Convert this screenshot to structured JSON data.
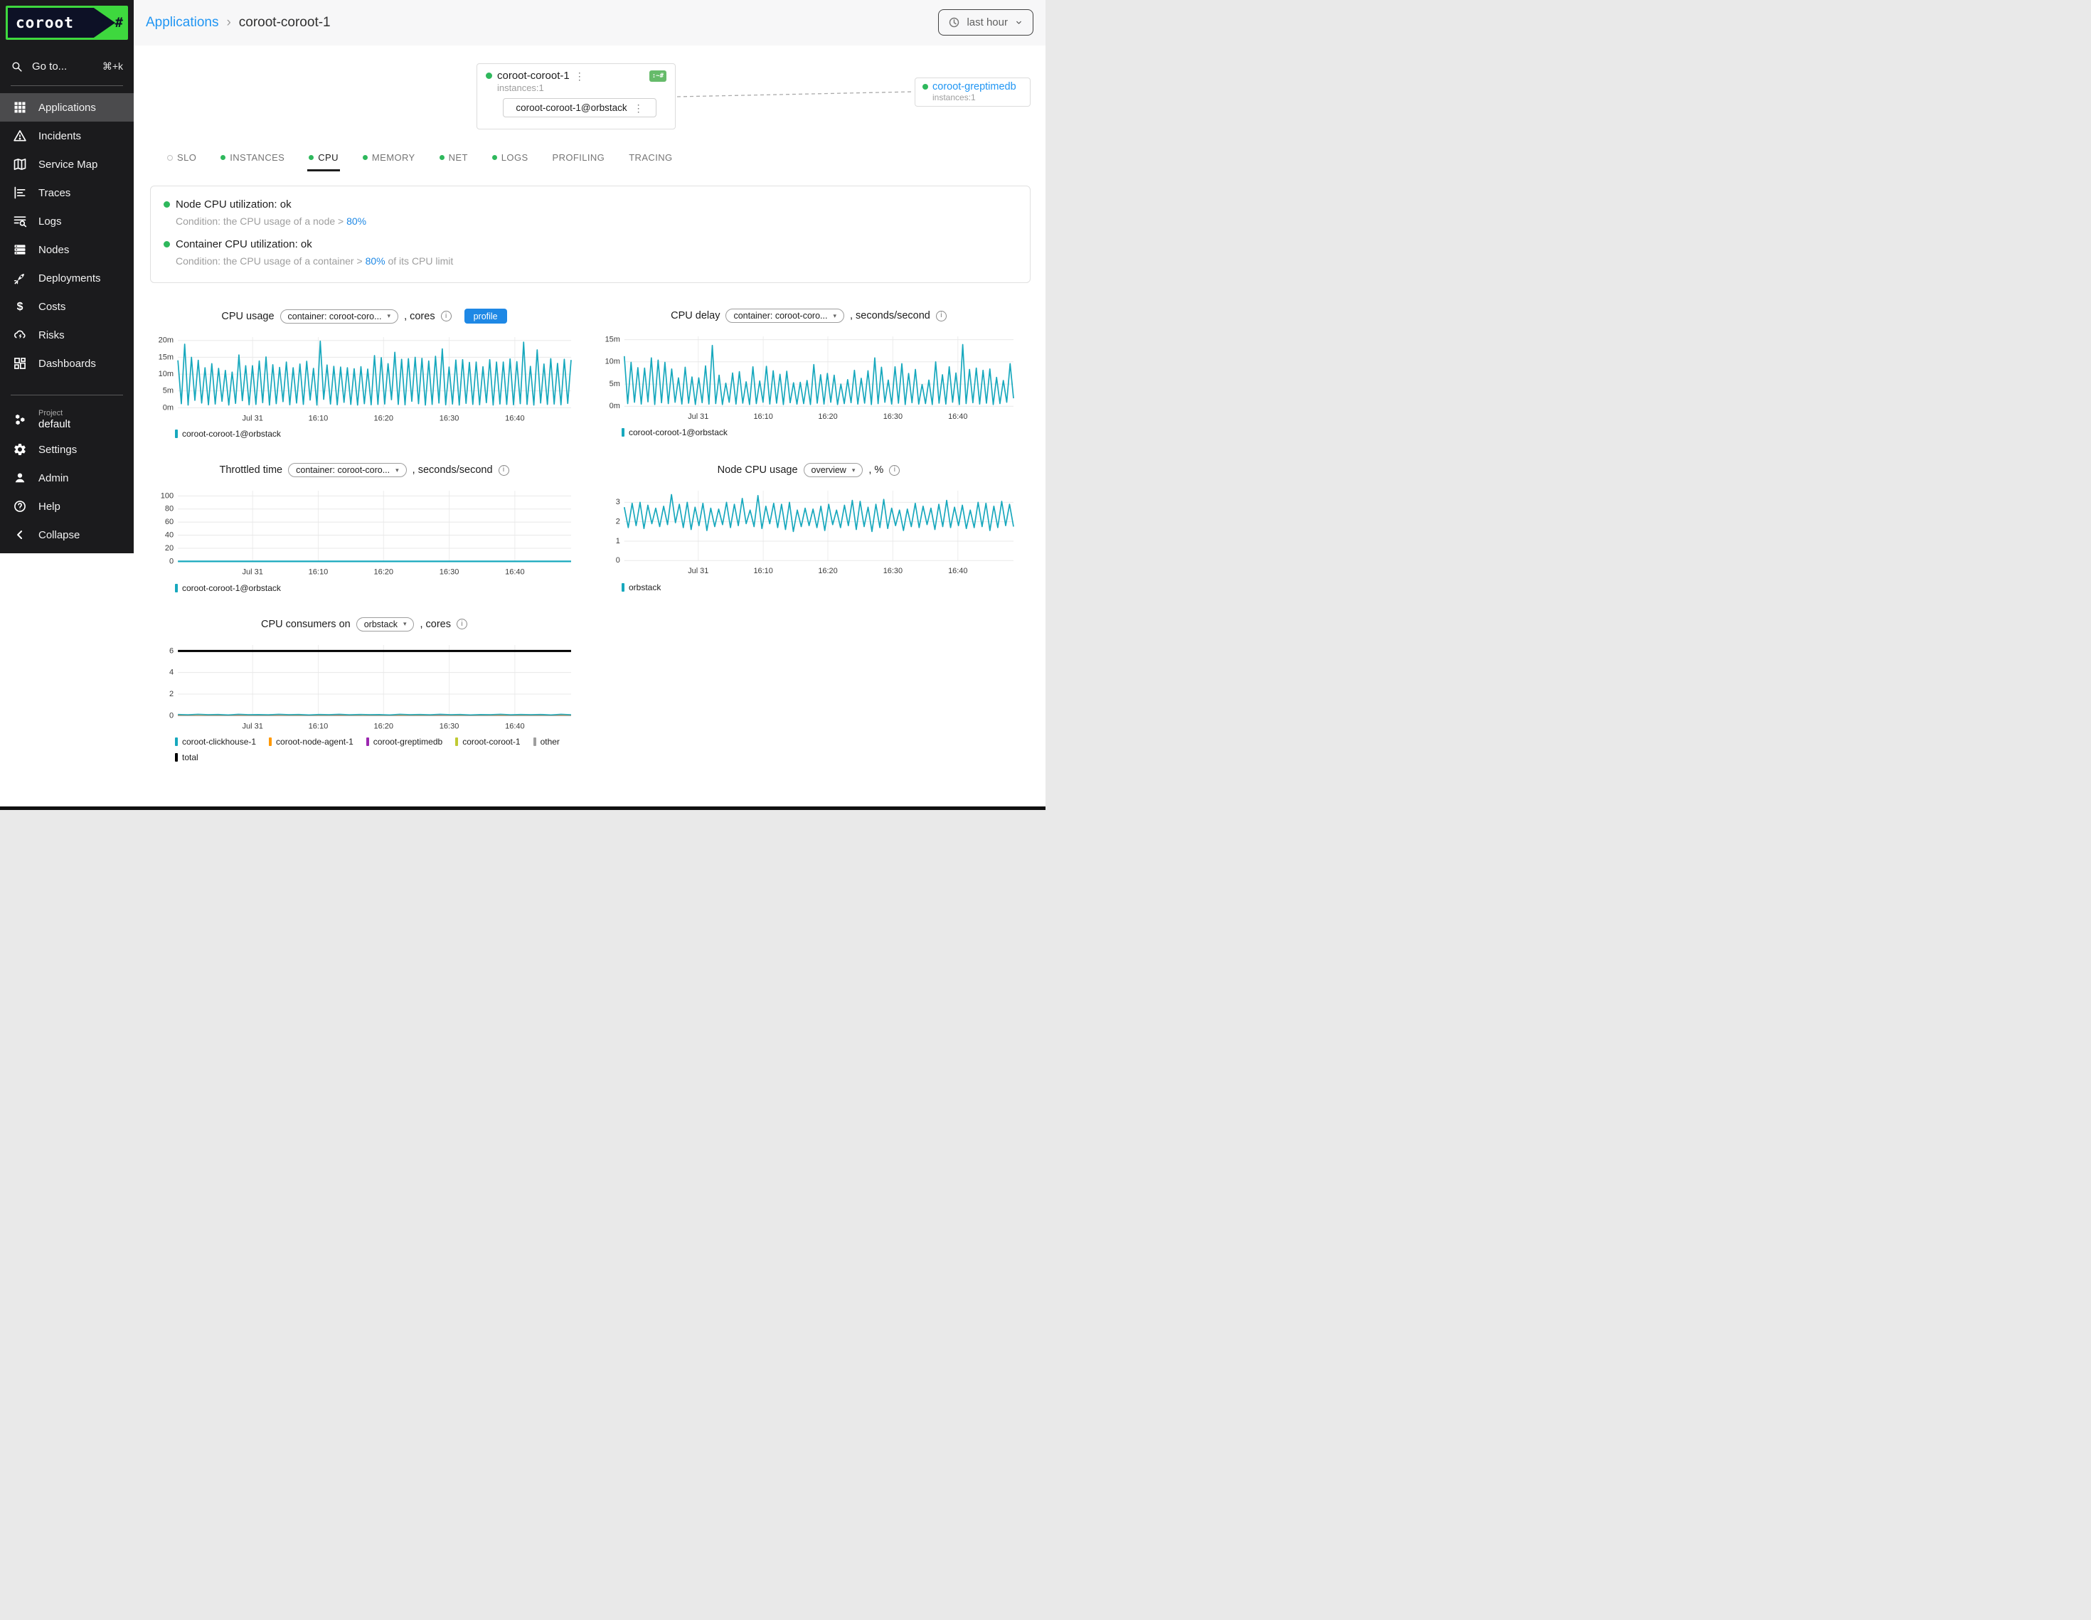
{
  "logo": {
    "name": "coroot",
    "suffix": ":~#"
  },
  "sidebar": {
    "search": {
      "label": "Go to...",
      "shortcut": "⌘+k"
    },
    "items": [
      {
        "id": "applications",
        "label": "Applications",
        "icon": "apps-grid",
        "active": true
      },
      {
        "id": "incidents",
        "label": "Incidents",
        "icon": "warning-triangle",
        "active": false
      },
      {
        "id": "service-map",
        "label": "Service Map",
        "icon": "map",
        "active": false
      },
      {
        "id": "traces",
        "label": "Traces",
        "icon": "traces",
        "active": false
      },
      {
        "id": "logs",
        "label": "Logs",
        "icon": "log-search",
        "active": false
      },
      {
        "id": "nodes",
        "label": "Nodes",
        "icon": "server-stack",
        "active": false
      },
      {
        "id": "deployments",
        "label": "Deployments",
        "icon": "rocket",
        "active": false
      },
      {
        "id": "costs",
        "label": "Costs",
        "icon": "dollar",
        "active": false
      },
      {
        "id": "risks",
        "label": "Risks",
        "icon": "storm-cloud",
        "active": false
      },
      {
        "id": "dashboards",
        "label": "Dashboards",
        "icon": "dashboard-tiles",
        "active": false
      }
    ],
    "project": {
      "label": "Project",
      "name": "default",
      "icon": "hexagon-cluster"
    },
    "footer_items": [
      {
        "id": "settings",
        "label": "Settings",
        "icon": "gear"
      },
      {
        "id": "admin",
        "label": "Admin",
        "icon": "person"
      },
      {
        "id": "help",
        "label": "Help",
        "icon": "help-circle"
      },
      {
        "id": "collapse",
        "label": "Collapse",
        "icon": "chevron-left"
      }
    ]
  },
  "header": {
    "breadcrumb_link": "Applications",
    "breadcrumb_sep": "›",
    "breadcrumb_current": "coroot-coroot-1",
    "time_picker_label": "last hour"
  },
  "service_map": {
    "app_card": {
      "title": "coroot-coroot-1",
      "instances": "instances:1",
      "badge": ":~#",
      "menu_icon": "⋮",
      "instance_label": "coroot-coroot-1@orbstack",
      "instance_menu_icon": "⋮"
    },
    "peer_card": {
      "title": "coroot-greptimedb",
      "instances": "instances:1"
    }
  },
  "tabs": [
    {
      "label": "SLO",
      "dot": "gray",
      "active": false
    },
    {
      "label": "INSTANCES",
      "dot": "green",
      "active": false
    },
    {
      "label": "CPU",
      "dot": "green",
      "active": true
    },
    {
      "label": "MEMORY",
      "dot": "green",
      "active": false
    },
    {
      "label": "NET",
      "dot": "green",
      "active": false
    },
    {
      "label": "LOGS",
      "dot": "green",
      "active": false
    },
    {
      "label": "PROFILING",
      "dot": "none",
      "active": false
    },
    {
      "label": "TRACING",
      "dot": "none",
      "active": false
    }
  ],
  "checks": [
    {
      "title": "Node CPU utilization: ok",
      "condition_prefix": "Condition: the CPU usage of a node > ",
      "threshold": "80%",
      "condition_suffix": ""
    },
    {
      "title": "Container CPU utilization: ok",
      "condition_prefix": "Condition: the CPU usage of a container > ",
      "threshold": "80%",
      "condition_suffix": " of its CPU limit"
    }
  ],
  "colors": {
    "link_blue": "#2196f3",
    "accent_blue": "#1e88e5",
    "ok_green": "#2eb85c",
    "badge_green": "#66bb6a",
    "logo_green": "#3ed83e",
    "logo_navy": "#0d1126",
    "chart_teal": "#17a8bd",
    "orange": "#ff9800",
    "purple": "#9c27b0",
    "lime": "#c0ca33",
    "gray": "#9e9e9e",
    "black": "#000000"
  },
  "chart_data": [
    {
      "id": "cpu-usage",
      "type": "line",
      "title": "CPU usage",
      "selector": "container: coroot-coro...",
      "suffix": ", cores",
      "profile_button": "profile",
      "ylim": [
        0,
        21
      ],
      "yticks": [
        0,
        5,
        10,
        15,
        20
      ],
      "ytick_labels": [
        "0m",
        "5m",
        "10m",
        "15m",
        "20m"
      ],
      "xticks": [
        {
          "f": 0.19,
          "label": "Jul 31"
        },
        {
          "f": 0.357,
          "label": "16:10"
        },
        {
          "f": 0.523,
          "label": "16:20"
        },
        {
          "f": 0.69,
          "label": "16:30"
        },
        {
          "f": 0.857,
          "label": "16:40"
        }
      ],
      "series": [
        {
          "name": "coroot-coroot-1@orbstack",
          "color": "#17a8bd",
          "width": 1.7,
          "values": [
            14.1,
            1.2,
            18.9,
            0.8,
            15.0,
            2.2,
            14.1,
            1.4,
            11.9,
            0.9,
            13.1,
            1.1,
            11.7,
            1.9,
            11.1,
            0.8,
            10.6,
            1.3,
            15.7,
            2.1,
            12.5,
            0.9,
            12.5,
            1.0,
            13.9,
            1.5,
            15.1,
            0.8,
            12.8,
            1.2,
            12.0,
            1.8,
            13.6,
            0.9,
            11.9,
            1.4,
            13.0,
            1.0,
            13.8,
            2.3,
            11.7,
            0.8,
            19.8,
            2.5,
            12.7,
            1.1,
            12.3,
            0.9,
            12.1,
            1.6,
            11.9,
            1.0,
            11.6,
            0.8,
            12.2,
            1.2,
            11.5,
            0.9,
            15.5,
            1.0,
            14.9,
            1.1,
            13.1,
            2.4,
            16.5,
            1.0,
            14.4,
            0.9,
            14.6,
            1.9,
            15.0,
            1.2,
            14.7,
            0.8,
            13.9,
            1.0,
            15.3,
            1.4,
            17.5,
            0.9,
            12.1,
            1.1,
            14.2,
            0.8,
            14.3,
            1.3,
            13.5,
            1.0,
            13.6,
            0.9,
            12.2,
            1.5,
            14.3,
            0.8,
            13.6,
            1.1,
            13.6,
            1.0,
            14.5,
            0.9,
            13.7,
            1.2,
            19.5,
            1.0,
            12.3,
            0.8,
            17.2,
            1.4,
            13.0,
            1.0,
            14.6,
            1.1,
            13.2,
            0.9,
            14.4,
            1.3,
            14.2
          ]
        }
      ],
      "legend": [
        {
          "name": "coroot-coroot-1@orbstack",
          "color": "#17a8bd"
        }
      ]
    },
    {
      "id": "cpu-delay",
      "type": "line",
      "title": "CPU delay",
      "selector": "container: coroot-coro...",
      "suffix": ", seconds/second",
      "ylim": [
        0,
        15.75
      ],
      "yticks": [
        0,
        5,
        10,
        15
      ],
      "ytick_labels": [
        "0m",
        "5m",
        "10m",
        "15m"
      ],
      "xticks": [
        {
          "f": 0.19,
          "label": "Jul 31"
        },
        {
          "f": 0.357,
          "label": "16:10"
        },
        {
          "f": 0.523,
          "label": "16:20"
        },
        {
          "f": 0.69,
          "label": "16:30"
        },
        {
          "f": 0.857,
          "label": "16:40"
        }
      ],
      "series": [
        {
          "name": "coroot-coroot-1@orbstack",
          "color": "#17a8bd",
          "width": 1.7,
          "values": [
            11.3,
            0.6,
            9.9,
            0.9,
            8.7,
            0.5,
            8.6,
            1.0,
            10.9,
            0.4,
            10.4,
            0.8,
            9.9,
            0.6,
            8.4,
            0.9,
            6.4,
            0.5,
            8.8,
            0.7,
            6.6,
            0.4,
            6.4,
            0.8,
            9.1,
            0.5,
            13.7,
            0.6,
            7.0,
            0.4,
            5.2,
            0.9,
            7.5,
            0.5,
            7.8,
            0.7,
            5.5,
            0.4,
            8.9,
            0.6,
            5.7,
            0.9,
            9.0,
            0.5,
            8.0,
            0.7,
            7.2,
            0.4,
            7.9,
            0.8,
            5.3,
            0.5,
            5.4,
            0.6,
            5.8,
            0.4,
            9.4,
            0.7,
            7.1,
            0.5,
            7.4,
            0.9,
            7.0,
            0.4,
            5.0,
            0.6,
            6.0,
            0.8,
            8.1,
            0.5,
            6.3,
            0.7,
            8.0,
            0.4,
            10.9,
            0.6,
            8.8,
            0.9,
            5.9,
            0.5,
            8.9,
            0.7,
            9.6,
            0.4,
            7.4,
            0.8,
            8.3,
            0.5,
            4.9,
            0.6,
            5.9,
            0.4,
            10.0,
            0.7,
            7.1,
            0.5,
            8.9,
            0.9,
            7.5,
            0.4,
            13.9,
            0.6,
            8.3,
            0.8,
            8.6,
            0.5,
            8.1,
            0.7,
            8.4,
            0.4,
            6.5,
            0.6,
            5.8,
            0.9,
            9.6,
            1.8
          ]
        }
      ],
      "legend": [
        {
          "name": "coroot-coroot-1@orbstack",
          "color": "#17a8bd"
        }
      ]
    },
    {
      "id": "throttled-time",
      "type": "line",
      "title": "Throttled time",
      "selector": "container: coroot-coro...",
      "suffix": ", seconds/second",
      "ylim": [
        0,
        108
      ],
      "yticks": [
        0,
        20,
        40,
        60,
        80,
        100
      ],
      "ytick_labels": [
        "0",
        "20",
        "40",
        "60",
        "80",
        "100"
      ],
      "xticks": [
        {
          "f": 0.19,
          "label": "Jul 31"
        },
        {
          "f": 0.357,
          "label": "16:10"
        },
        {
          "f": 0.523,
          "label": "16:20"
        },
        {
          "f": 0.69,
          "label": "16:30"
        },
        {
          "f": 0.857,
          "label": "16:40"
        }
      ],
      "series": [
        {
          "name": "coroot-coroot-1@orbstack",
          "color": "#17a8bd",
          "width": 2.2,
          "values": [
            0,
            0
          ]
        }
      ],
      "legend": [
        {
          "name": "coroot-coroot-1@orbstack",
          "color": "#17a8bd"
        }
      ]
    },
    {
      "id": "node-cpu-usage",
      "type": "line",
      "title": "Node CPU usage",
      "selector": "overview",
      "suffix": ", %",
      "ylim": [
        0,
        3.6
      ],
      "yticks": [
        0,
        1,
        2,
        3
      ],
      "ytick_labels": [
        "0",
        "1",
        "2",
        "3"
      ],
      "xticks": [
        {
          "f": 0.19,
          "label": "Jul 31"
        },
        {
          "f": 0.357,
          "label": "16:10"
        },
        {
          "f": 0.523,
          "label": "16:20"
        },
        {
          "f": 0.69,
          "label": "16:30"
        },
        {
          "f": 0.857,
          "label": "16:40"
        }
      ],
      "series": [
        {
          "name": "orbstack",
          "color": "#17a8bd",
          "width": 1.7,
          "values": [
            2.75,
            1.7,
            2.95,
            1.8,
            3.0,
            1.65,
            2.85,
            1.9,
            2.7,
            1.75,
            2.8,
            1.85,
            3.4,
            1.95,
            2.9,
            1.7,
            3.0,
            1.6,
            2.75,
            1.8,
            2.95,
            1.55,
            2.7,
            1.75,
            2.65,
            1.85,
            3.0,
            1.7,
            2.9,
            1.8,
            3.2,
            1.9,
            2.6,
            1.75,
            3.35,
            1.65,
            2.8,
            1.9,
            2.95,
            1.7,
            2.9,
            1.6,
            3.0,
            1.5,
            2.6,
            1.75,
            2.7,
            1.8,
            2.65,
            1.7,
            2.8,
            1.55,
            2.9,
            1.85,
            2.6,
            1.7,
            2.85,
            1.8,
            3.1,
            1.6,
            3.05,
            1.75,
            2.75,
            1.5,
            2.9,
            1.7,
            3.15,
            1.65,
            2.7,
            1.8,
            2.6,
            1.55,
            2.65,
            1.75,
            2.95,
            1.7,
            2.8,
            1.85,
            2.7,
            1.6,
            2.9,
            1.75,
            3.1,
            1.7,
            2.75,
            1.8,
            2.85,
            1.65,
            2.6,
            1.7,
            3.0,
            1.75,
            2.95,
            1.55,
            2.8,
            1.7,
            3.05,
            1.8,
            2.9,
            1.75
          ]
        }
      ],
      "legend": [
        {
          "name": "orbstack",
          "color": "#17a8bd"
        }
      ]
    },
    {
      "id": "cpu-consumers",
      "type": "line",
      "title": "CPU consumers on",
      "selector": "orbstack",
      "suffix": ", cores",
      "ylim": [
        0,
        6.55
      ],
      "yticks": [
        0,
        2,
        4,
        6
      ],
      "ytick_labels": [
        "0",
        "2",
        "4",
        "6"
      ],
      "xticks": [
        {
          "f": 0.19,
          "label": "Jul 31"
        },
        {
          "f": 0.357,
          "label": "16:10"
        },
        {
          "f": 0.523,
          "label": "16:20"
        },
        {
          "f": 0.69,
          "label": "16:30"
        },
        {
          "f": 0.857,
          "label": "16:40"
        }
      ],
      "series": [
        {
          "name": "total",
          "color": "#000000",
          "width": 3,
          "values": [
            6,
            6
          ]
        },
        {
          "name": "coroot-node-agent-1",
          "color": "#ff9800",
          "width": 1.2,
          "values": [
            0.05,
            0.035,
            0.05,
            0.04,
            0.05,
            0.035,
            0.05,
            0.04,
            0.05,
            0.035,
            0.05,
            0.04,
            0.05,
            0.035,
            0.05,
            0.04,
            0.05,
            0.035,
            0.05,
            0.04
          ]
        },
        {
          "name": "coroot-greptimedb",
          "color": "#9c27b0",
          "width": 1.2,
          "values": [
            0.025,
            0.02,
            0.03,
            0.02,
            0.025,
            0.02,
            0.03,
            0.02,
            0.025,
            0.02,
            0.03,
            0.02,
            0.025,
            0.02,
            0.03,
            0.02
          ]
        },
        {
          "name": "coroot-coroot-1",
          "color": "#c0ca33",
          "width": 1.2,
          "values": [
            0.015,
            0.015
          ]
        },
        {
          "name": "other",
          "color": "#9e9e9e",
          "width": 1.2,
          "values": [
            0.008,
            0.008
          ]
        },
        {
          "name": "coroot-clickhouse-1",
          "color": "#17a8bd",
          "width": 1.4,
          "values": [
            0.12,
            0.09,
            0.13,
            0.1,
            0.12,
            0.08,
            0.13,
            0.1,
            0.11,
            0.09,
            0.13,
            0.1,
            0.12,
            0.08,
            0.12,
            0.1,
            0.13,
            0.09,
            0.12,
            0.1,
            0.11,
            0.08,
            0.13,
            0.1,
            0.12,
            0.09,
            0.13,
            0.1,
            0.12,
            0.08,
            0.11,
            0.1,
            0.13,
            0.09,
            0.12,
            0.1,
            0.12,
            0.08,
            0.13,
            0.09
          ]
        }
      ],
      "legend": [
        {
          "name": "coroot-clickhouse-1",
          "color": "#17a8bd"
        },
        {
          "name": "coroot-node-agent-1",
          "color": "#ff9800"
        },
        {
          "name": "coroot-greptimedb",
          "color": "#9c27b0"
        },
        {
          "name": "coroot-coroot-1",
          "color": "#c0ca33"
        },
        {
          "name": "other",
          "color": "#9e9e9e"
        }
      ],
      "legend2": [
        {
          "name": "total",
          "color": "#000000"
        }
      ]
    }
  ]
}
